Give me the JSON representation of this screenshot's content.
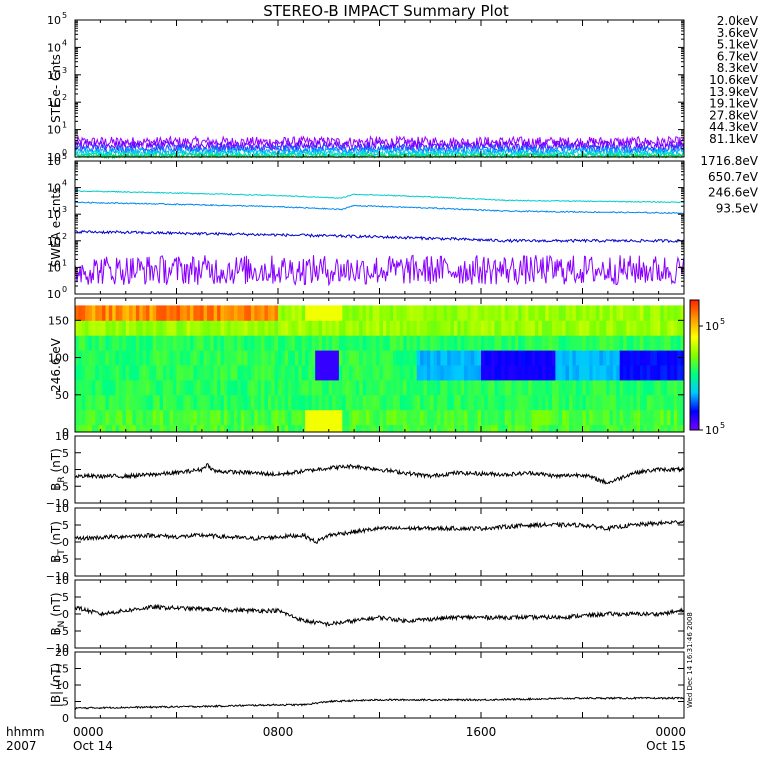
{
  "title": "STEREO-B IMPACT Summary Plot",
  "footer": {
    "hhmm_label": "hhmm",
    "year_label": "2007"
  },
  "side_stamp": "Wed Dec 14 16:31:46 2008",
  "x_axis": {
    "range_hours": [
      0,
      24
    ],
    "ticks": [
      {
        "hour": 0,
        "label": "0000",
        "sub": "Oct 14"
      },
      {
        "hour": 8,
        "label": "0800",
        "sub": ""
      },
      {
        "hour": 16,
        "label": "1600",
        "sub": ""
      },
      {
        "hour": 24,
        "label": "0000",
        "sub": "Oct 15"
      }
    ]
  },
  "colorbar": {
    "labels": [
      {
        "base": "10",
        "exp": "5",
        "level": 0.8
      },
      {
        "base": "10",
        "exp": "5",
        "level": 0.0
      }
    ]
  },
  "colors": {
    "rainbow": [
      "#7700ff",
      "#0000ff",
      "#00c8ff",
      "#00ff80",
      "#80ff00",
      "#ffff00",
      "#ff9900",
      "#ff2000"
    ]
  },
  "chart_data": [
    {
      "panel": "ste",
      "type": "line",
      "ylabel": "STE e- Cnts",
      "yscale": "log",
      "ylim": [
        1,
        100000
      ],
      "yticks": [
        {
          "base": "10",
          "exp": "0",
          "v": 1
        },
        {
          "base": "10",
          "exp": "1",
          "v": 10
        },
        {
          "base": "10",
          "exp": "2",
          "v": 100
        },
        {
          "base": "10",
          "exp": "3",
          "v": 1000
        },
        {
          "base": "10",
          "exp": "4",
          "v": 10000
        },
        {
          "base": "10",
          "exp": "5",
          "v": 100000
        }
      ],
      "series": [
        {
          "name": "2.0keV",
          "color": "#9900ff",
          "level": 3.5,
          "noise": 0.45
        },
        {
          "name": "3.6keV",
          "color": "#6600ff",
          "level": 2.6,
          "noise": 0.4
        },
        {
          "name": "5.1keV",
          "color": "#2255ff",
          "level": 2.0,
          "noise": 0.35
        },
        {
          "name": "6.7keV",
          "color": "#00aaff",
          "level": 1.6,
          "noise": 0.3
        },
        {
          "name": "8.3keV",
          "color": "#00dddd",
          "level": 1.3,
          "noise": 0.25
        },
        {
          "name": "10.6keV",
          "color": "#00dd99",
          "level": 1.15,
          "noise": 0.2
        },
        {
          "name": "13.9keV",
          "color": "#22cc22",
          "level": 1.05,
          "noise": 0.1
        },
        {
          "name": "19.1keV",
          "color": "#bbdd00",
          "level": 1.0,
          "noise": 0.0
        },
        {
          "name": "27.8keV",
          "color": "#ffcc00",
          "level": 1.0,
          "noise": 0.0
        },
        {
          "name": "44.3keV",
          "color": "#ff8800",
          "level": 1.0,
          "noise": 0.0
        },
        {
          "name": "81.1keV",
          "color": "#ee2200",
          "level": 1.0,
          "noise": 0.0
        }
      ]
    },
    {
      "panel": "swea",
      "type": "line",
      "ylabel": "SWEA e- cnts",
      "yscale": "log",
      "ylim": [
        1,
        100000
      ],
      "yticks": [
        {
          "base": "10",
          "exp": "0",
          "v": 1
        },
        {
          "base": "10",
          "exp": "1",
          "v": 10
        },
        {
          "base": "10",
          "exp": "2",
          "v": 100
        },
        {
          "base": "10",
          "exp": "3",
          "v": 1000
        },
        {
          "base": "10",
          "exp": "4",
          "v": 10000
        },
        {
          "base": "10",
          "exp": "5",
          "v": 100000
        }
      ],
      "series": [
        {
          "name": "1716.8eV",
          "color": "#8800ff",
          "trend": [
            [
              0,
              8
            ],
            [
              24,
              8
            ]
          ],
          "noise": 0.8
        },
        {
          "name": "650.7eV",
          "color": "#0000cc",
          "trend": [
            [
              0,
              220
            ],
            [
              9,
              160
            ],
            [
              12,
              140
            ],
            [
              17,
              100
            ],
            [
              24,
              100
            ]
          ],
          "noise": 0.12
        },
        {
          "name": "246.6eV",
          "color": "#0088ee",
          "trend": [
            [
              0,
              2800
            ],
            [
              8,
              1900
            ],
            [
              10.5,
              1500
            ],
            [
              11,
              2100
            ],
            [
              17,
              1300
            ],
            [
              24,
              1100
            ]
          ],
          "noise": 0.05
        },
        {
          "name": "93.5eV",
          "color": "#00cccc",
          "trend": [
            [
              0,
              7500
            ],
            [
              8,
              5000
            ],
            [
              10.5,
              4000
            ],
            [
              11,
              5600
            ],
            [
              17,
              3300
            ],
            [
              24,
              2800
            ]
          ],
          "noise": 0.04
        }
      ]
    },
    {
      "panel": "pad",
      "type": "heatmap",
      "ylabel": "246.6 eV",
      "ylim": [
        0,
        180
      ],
      "yticks": [
        {
          "label": "0",
          "v": 0
        },
        {
          "label": "50",
          "v": 50
        },
        {
          "label": "100",
          "v": 100
        },
        {
          "label": "150",
          "v": 150
        }
      ],
      "x_range_hours": [
        0,
        24
      ],
      "y_extent": [
        0,
        170
      ]
    },
    {
      "panel": "br",
      "type": "line",
      "ylabel_main": "B",
      "ylabel_sub": "R",
      "ylabel_unit": "(nT)",
      "ylim": [
        -10,
        10
      ],
      "yticks": [
        {
          "label": "10",
          "v": 10
        },
        {
          "label": "5",
          "v": 5
        },
        {
          "label": "0",
          "v": 0
        },
        {
          "label": "−5",
          "v": -5
        },
        {
          "label": "−10",
          "v": -10
        }
      ],
      "trend": [
        [
          0,
          -2
        ],
        [
          2,
          -2
        ],
        [
          4,
          -1
        ],
        [
          5,
          0
        ],
        [
          5.2,
          1.5
        ],
        [
          5.5,
          -0.5
        ],
        [
          7,
          -1
        ],
        [
          8,
          -1.5
        ],
        [
          9,
          -0.5
        ],
        [
          10,
          0.5
        ],
        [
          11,
          1
        ],
        [
          12,
          0
        ],
        [
          13,
          -1
        ],
        [
          14,
          -2
        ],
        [
          15,
          -1
        ],
        [
          17,
          -1.5
        ],
        [
          18,
          -1
        ],
        [
          19,
          -2
        ],
        [
          20,
          -1.5
        ],
        [
          21,
          -4
        ],
        [
          22,
          -1
        ],
        [
          23,
          0
        ],
        [
          24,
          0
        ]
      ]
    },
    {
      "panel": "bt",
      "type": "line",
      "ylabel_main": "B",
      "ylabel_sub": "T",
      "ylabel_unit": "(nT)",
      "ylim": [
        -10,
        10
      ],
      "yticks": [
        {
          "label": "10",
          "v": 10
        },
        {
          "label": "5",
          "v": 5
        },
        {
          "label": "0",
          "v": 0
        },
        {
          "label": "−5",
          "v": -5
        },
        {
          "label": "−10",
          "v": -10
        }
      ],
      "trend": [
        [
          0,
          1
        ],
        [
          3,
          2
        ],
        [
          4,
          1.5
        ],
        [
          5,
          2
        ],
        [
          7,
          1
        ],
        [
          8,
          1.5
        ],
        [
          9,
          2
        ],
        [
          9.5,
          0
        ],
        [
          10,
          2
        ],
        [
          11,
          3
        ],
        [
          12,
          4
        ],
        [
          14,
          4
        ],
        [
          16,
          4
        ],
        [
          18,
          5
        ],
        [
          20,
          5
        ],
        [
          21,
          4
        ],
        [
          22,
          5
        ],
        [
          24,
          6
        ]
      ]
    },
    {
      "panel": "bn",
      "type": "line",
      "ylabel_main": "B",
      "ylabel_sub": "N",
      "ylabel_unit": "(nT)",
      "ylim": [
        -10,
        10
      ],
      "yticks": [
        {
          "label": "10",
          "v": 10
        },
        {
          "label": "5",
          "v": 5
        },
        {
          "label": "0",
          "v": 0
        },
        {
          "label": "−5",
          "v": -5
        },
        {
          "label": "−10",
          "v": -10
        }
      ],
      "trend": [
        [
          0,
          2
        ],
        [
          1,
          0
        ],
        [
          2,
          1
        ],
        [
          3,
          2
        ],
        [
          5,
          1.5
        ],
        [
          7,
          1
        ],
        [
          8,
          1
        ],
        [
          9,
          -2
        ],
        [
          10,
          -3
        ],
        [
          11,
          -2
        ],
        [
          12,
          -1
        ],
        [
          13,
          -2
        ],
        [
          15,
          -1
        ],
        [
          17,
          -1
        ],
        [
          19,
          -1
        ],
        [
          21,
          0
        ],
        [
          23,
          0
        ],
        [
          24,
          1
        ]
      ]
    },
    {
      "panel": "b",
      "type": "line",
      "ylabel": "|B| (nT)",
      "ylim": [
        0,
        20
      ],
      "yticks": [
        {
          "label": "20",
          "v": 20
        },
        {
          "label": "15",
          "v": 15
        },
        {
          "label": "10",
          "v": 10
        },
        {
          "label": "5",
          "v": 5
        },
        {
          "label": "0",
          "v": 0
        }
      ],
      "trend": [
        [
          0,
          3
        ],
        [
          5,
          3.5
        ],
        [
          8,
          4
        ],
        [
          9,
          4
        ],
        [
          10,
          5
        ],
        [
          12,
          5.5
        ],
        [
          16,
          5.5
        ],
        [
          20,
          6
        ],
        [
          24,
          6
        ]
      ]
    }
  ]
}
